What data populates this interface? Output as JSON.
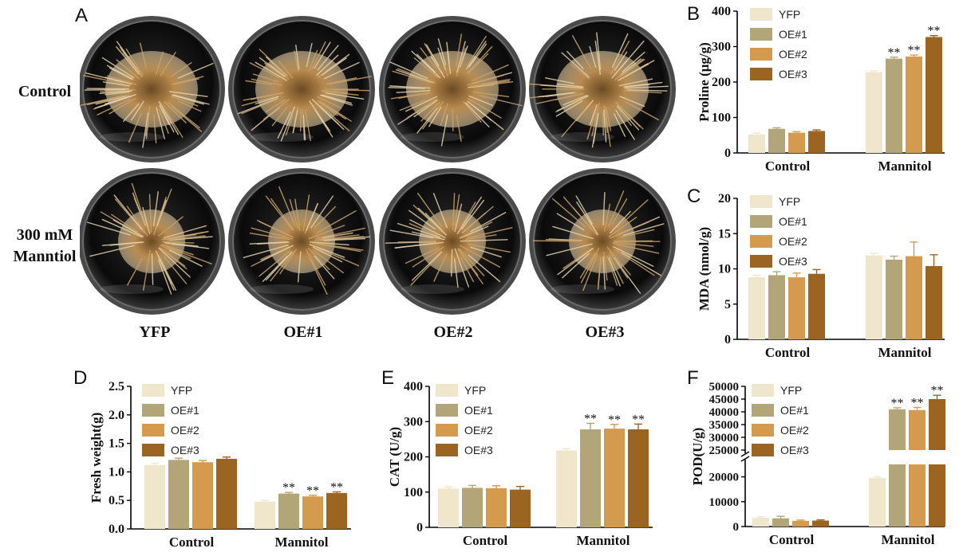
{
  "panels": {
    "A": "A",
    "B": "B",
    "C": "C",
    "D": "D",
    "E": "E",
    "F": "F"
  },
  "photo": {
    "row_labels": [
      "Control",
      "300 mM\nManntiol"
    ],
    "col_labels": [
      "YFP",
      "OE#1",
      "OE#2",
      "OE#3"
    ]
  },
  "colors": {
    "YFP": "#efe6cc",
    "OE#1": "#b2a678",
    "OE#2": "#d49a4e",
    "OE#3": "#9c6421"
  },
  "chart_data": [
    {
      "id": "B",
      "type": "bar",
      "categories": [
        "Control",
        "Mannitol"
      ],
      "ylabel": "Proline (μg/g)",
      "ylim": [
        0,
        400
      ],
      "yticks": [
        0,
        100,
        200,
        300,
        400
      ],
      "series": [
        {
          "name": "YFP",
          "values": [
            52,
            228
          ],
          "errors": [
            4,
            4
          ],
          "sig": [
            "",
            ""
          ]
        },
        {
          "name": "OE#1",
          "values": [
            68,
            266
          ],
          "errors": [
            3,
            4
          ],
          "sig": [
            "",
            "**"
          ]
        },
        {
          "name": "OE#2",
          "values": [
            57,
            272
          ],
          "errors": [
            3,
            4
          ],
          "sig": [
            "",
            "**"
          ]
        },
        {
          "name": "OE#3",
          "values": [
            62,
            327
          ],
          "errors": [
            3,
            4
          ],
          "sig": [
            "",
            "**"
          ]
        }
      ]
    },
    {
      "id": "C",
      "type": "bar",
      "categories": [
        "Control",
        "Mannitol"
      ],
      "ylabel": "MDA (nmol/g)",
      "ylim": [
        0,
        20
      ],
      "yticks": [
        0,
        5,
        10,
        15,
        20
      ],
      "series": [
        {
          "name": "YFP",
          "values": [
            8.8,
            11.9
          ],
          "errors": [
            0.3,
            0.3
          ],
          "sig": [
            "",
            ""
          ]
        },
        {
          "name": "OE#1",
          "values": [
            9.1,
            11.3
          ],
          "errors": [
            0.5,
            0.5
          ],
          "sig": [
            "",
            ""
          ]
        },
        {
          "name": "OE#2",
          "values": [
            8.8,
            11.8
          ],
          "errors": [
            0.6,
            2.0
          ],
          "sig": [
            "",
            ""
          ]
        },
        {
          "name": "OE#3",
          "values": [
            9.3,
            10.4
          ],
          "errors": [
            0.6,
            1.6
          ],
          "sig": [
            "",
            ""
          ]
        }
      ]
    },
    {
      "id": "D",
      "type": "bar",
      "categories": [
        "Control",
        "Mannitol"
      ],
      "ylabel": "Fresh weight(g)",
      "ylim": [
        0,
        2.5
      ],
      "yticks": [
        "0.0",
        "0.5",
        "1.0",
        "1.5",
        "2.0",
        "2.5"
      ],
      "series": [
        {
          "name": "YFP",
          "values": [
            1.12,
            0.48
          ],
          "errors": [
            0.03,
            0.02
          ],
          "sig": [
            "",
            ""
          ]
        },
        {
          "name": "OE#1",
          "values": [
            1.21,
            0.62
          ],
          "errors": [
            0.03,
            0.02
          ],
          "sig": [
            "",
            "**"
          ]
        },
        {
          "name": "OE#2",
          "values": [
            1.17,
            0.57
          ],
          "errors": [
            0.03,
            0.02
          ],
          "sig": [
            "",
            "**"
          ]
        },
        {
          "name": "OE#3",
          "values": [
            1.23,
            0.63
          ],
          "errors": [
            0.03,
            0.02
          ],
          "sig": [
            "",
            "**"
          ]
        }
      ]
    },
    {
      "id": "E",
      "type": "bar",
      "categories": [
        "Control",
        "Mannitol"
      ],
      "ylabel": "CAT (U/g)",
      "ylim": [
        0,
        400
      ],
      "yticks": [
        0,
        100,
        200,
        300,
        400
      ],
      "series": [
        {
          "name": "YFP",
          "values": [
            110,
            218
          ],
          "errors": [
            5,
            5
          ],
          "sig": [
            "",
            ""
          ]
        },
        {
          "name": "OE#1",
          "values": [
            112,
            278
          ],
          "errors": [
            7,
            17
          ],
          "sig": [
            "",
            "**"
          ]
        },
        {
          "name": "OE#2",
          "values": [
            111,
            280
          ],
          "errors": [
            7,
            12
          ],
          "sig": [
            "",
            "**"
          ]
        },
        {
          "name": "OE#3",
          "values": [
            107,
            278
          ],
          "errors": [
            9,
            15
          ],
          "sig": [
            "",
            "**"
          ]
        }
      ]
    },
    {
      "id": "F",
      "type": "bar",
      "categories": [
        "Control",
        "Mannitol"
      ],
      "ylabel": "POD(U/g)",
      "broken_axis": {
        "lower": [
          0,
          25000
        ],
        "upper": [
          25000,
          50000
        ]
      },
      "yticks_lower": [
        0,
        10000,
        20000
      ],
      "yticks_upper": [
        25000,
        30000,
        35000,
        40000,
        45000,
        50000
      ],
      "series": [
        {
          "name": "YFP",
          "values": [
            3500,
            19500
          ],
          "errors": [
            400,
            500
          ],
          "sig": [
            "",
            ""
          ]
        },
        {
          "name": "OE#1",
          "values": [
            3300,
            41000
          ],
          "errors": [
            800,
            600
          ],
          "sig": [
            "",
            "**"
          ]
        },
        {
          "name": "OE#2",
          "values": [
            2300,
            40700
          ],
          "errors": [
            300,
            1000
          ],
          "sig": [
            "",
            "**"
          ]
        },
        {
          "name": "OE#3",
          "values": [
            2400,
            45000
          ],
          "errors": [
            300,
            1500
          ],
          "sig": [
            "",
            "**"
          ]
        }
      ]
    }
  ]
}
